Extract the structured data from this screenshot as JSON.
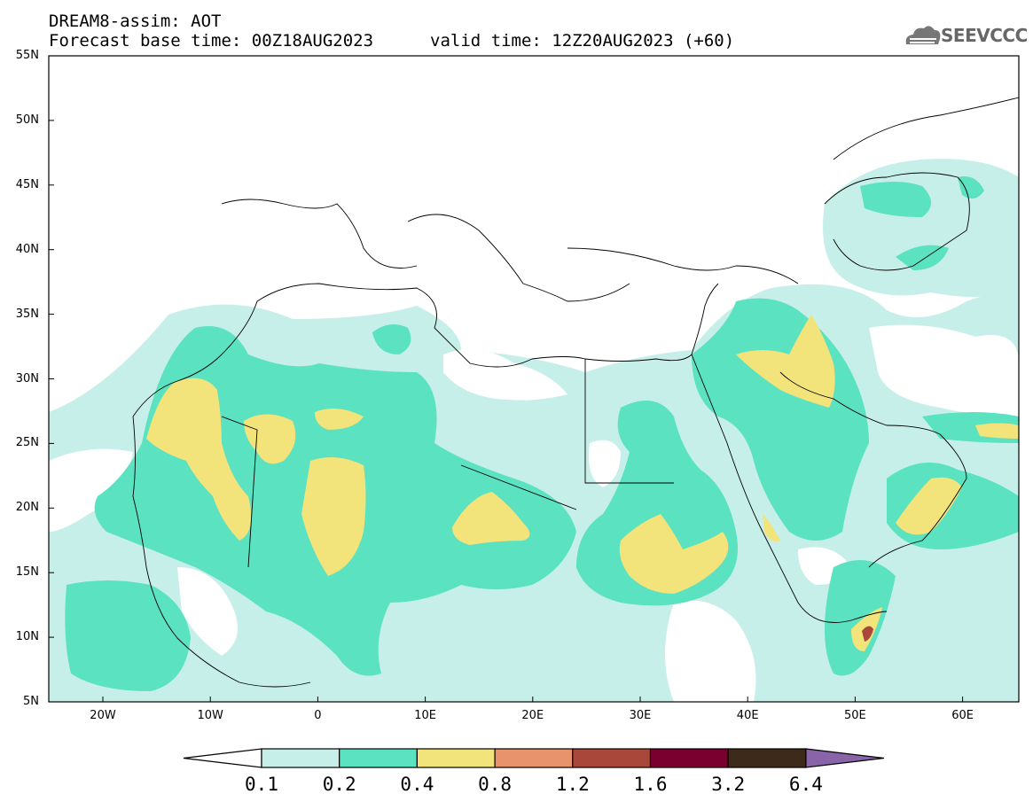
{
  "title": {
    "model_line": "DREAM8-assim: AOT",
    "base_time": "Forecast base time: 00Z18AUG2023",
    "valid_time": "valid time: 12Z20AUG2023 (+60)"
  },
  "logo": {
    "text": "SEEVCCC",
    "icon": "cloud-logo-icon"
  },
  "axes": {
    "lat_labels": [
      "55N",
      "50N",
      "45N",
      "40N",
      "35N",
      "30N",
      "25N",
      "20N",
      "15N",
      "10N",
      "5N"
    ],
    "lon_labels": [
      "20W",
      "10W",
      "0",
      "10E",
      "20E",
      "30E",
      "40E",
      "50E",
      "60E"
    ]
  },
  "colorbar": {
    "labels": [
      "0.1",
      "0.2",
      "0.4",
      "0.8",
      "1.2",
      "1.6",
      "3.2",
      "6.4"
    ],
    "colors": [
      "#ffffff",
      "#c7efe9",
      "#5ae2c1",
      "#f2e37b",
      "#e8936b",
      "#a9473a",
      "#7a0030",
      "#3d2a1a",
      "#8a64a8"
    ]
  },
  "palette": {
    "light": "#c7efe9",
    "green": "#5ae2c1",
    "yellow": "#f2e37b",
    "red": "#a9473a"
  }
}
